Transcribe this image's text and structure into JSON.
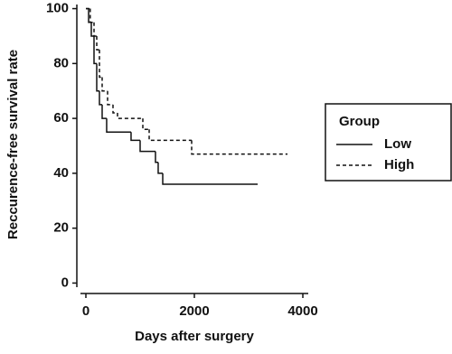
{
  "chart_data": {
    "type": "step",
    "x_label": "Days after surgery",
    "y_label": "Reccurence-free survival rate",
    "legend_title": "Group",
    "legend": "right",
    "xlim": [
      -100,
      4100
    ],
    "xticks": [
      0,
      2000,
      4000
    ],
    "ylim": [
      -1.5,
      101.5
    ],
    "yticks": [
      0,
      20,
      40,
      60,
      80,
      100
    ],
    "series": [
      {
        "name": "Low",
        "color": "#111111",
        "dash": "solid",
        "x": [
          0,
          50,
          100,
          150,
          200,
          250,
          300,
          383,
          833,
          1000,
          1283,
          1333,
          1417,
          3167
        ],
        "values": [
          100,
          95,
          90,
          80,
          70,
          65,
          60,
          55,
          52,
          48,
          44,
          40,
          36,
          36
        ]
      },
      {
        "name": "High",
        "color": "#111111",
        "dash": "dashed",
        "x": [
          0,
          80,
          150,
          200,
          250,
          300,
          400,
          500,
          583,
          1050,
          1167,
          1950,
          3717
        ],
        "values": [
          100,
          95,
          90,
          85,
          75,
          70,
          65,
          62,
          60,
          56,
          52,
          47,
          47
        ]
      }
    ]
  }
}
